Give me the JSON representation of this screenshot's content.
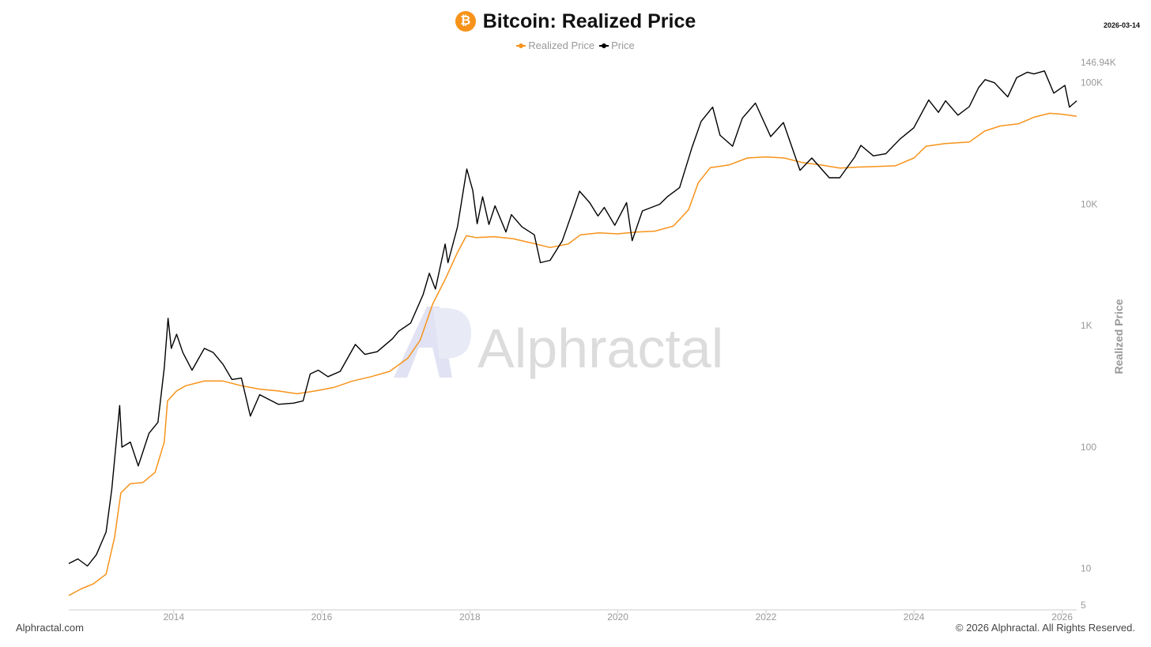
{
  "header": {
    "title": "Bitcoin: Realized Price",
    "icon": "bitcoin-icon",
    "icon_glyph": "₿",
    "date": "2026-03-14"
  },
  "legend": [
    {
      "label": "Realized Price",
      "color": "#f7931a"
    },
    {
      "label": "Price",
      "color": "#000000"
    }
  ],
  "watermark": "Alphractal",
  "footer": {
    "left": "Alphractal.com",
    "right": "© 2026 Alphractal. All Rights Reserved."
  },
  "chart_data": {
    "type": "line",
    "title": "Bitcoin: Realized Price",
    "ylabel": "Realized Price",
    "xlabel": "",
    "yscale": "log",
    "ylim": [
      5,
      146940
    ],
    "xlim": [
      "2012-08-01",
      "2026-03-14"
    ],
    "x_ticks": [
      "2014",
      "2016",
      "2018",
      "2020",
      "2022",
      "2024",
      "2026"
    ],
    "y_ticks": [
      {
        "value": 5,
        "label": "5"
      },
      {
        "value": 10,
        "label": "10"
      },
      {
        "value": 100,
        "label": "100"
      },
      {
        "value": 1000,
        "label": "1K"
      },
      {
        "value": 10000,
        "label": "10K"
      },
      {
        "value": 100000,
        "label": "100K"
      },
      {
        "value": 146940,
        "label": "146.94K"
      }
    ],
    "grid": false,
    "legend_position": "top-center",
    "series": [
      {
        "name": "Realized Price",
        "color": "#f7931a",
        "points": [
          [
            "2012-08-01",
            6
          ],
          [
            "2012-10-01",
            6.8
          ],
          [
            "2012-12-01",
            7.5
          ],
          [
            "2013-02-01",
            9
          ],
          [
            "2013-03-15",
            18
          ],
          [
            "2013-04-15",
            42
          ],
          [
            "2013-06-01",
            50
          ],
          [
            "2013-08-01",
            51
          ],
          [
            "2013-10-01",
            62
          ],
          [
            "2013-11-15",
            110
          ],
          [
            "2013-12-01",
            240
          ],
          [
            "2014-01-15",
            290
          ],
          [
            "2014-03-01",
            320
          ],
          [
            "2014-06-01",
            350
          ],
          [
            "2014-09-01",
            350
          ],
          [
            "2014-12-01",
            320
          ],
          [
            "2015-03-01",
            300
          ],
          [
            "2015-06-01",
            290
          ],
          [
            "2015-09-01",
            275
          ],
          [
            "2015-12-01",
            290
          ],
          [
            "2016-03-01",
            310
          ],
          [
            "2016-06-01",
            350
          ],
          [
            "2016-09-01",
            380
          ],
          [
            "2016-12-01",
            420
          ],
          [
            "2017-03-01",
            540
          ],
          [
            "2017-05-01",
            760
          ],
          [
            "2017-07-01",
            1500
          ],
          [
            "2017-09-01",
            2400
          ],
          [
            "2017-11-01",
            4000
          ],
          [
            "2017-12-15",
            5500
          ],
          [
            "2018-02-01",
            5300
          ],
          [
            "2018-05-01",
            5400
          ],
          [
            "2018-08-01",
            5200
          ],
          [
            "2018-11-01",
            4800
          ],
          [
            "2019-02-01",
            4400
          ],
          [
            "2019-05-01",
            4700
          ],
          [
            "2019-07-01",
            5600
          ],
          [
            "2019-10-01",
            5800
          ],
          [
            "2020-01-01",
            5700
          ],
          [
            "2020-04-01",
            5900
          ],
          [
            "2020-07-01",
            6000
          ],
          [
            "2020-10-01",
            6600
          ],
          [
            "2020-12-15",
            9000
          ],
          [
            "2021-02-01",
            15000
          ],
          [
            "2021-04-01",
            20000
          ],
          [
            "2021-07-01",
            21000
          ],
          [
            "2021-10-01",
            24000
          ],
          [
            "2022-01-01",
            24500
          ],
          [
            "2022-04-01",
            24000
          ],
          [
            "2022-07-01",
            22000
          ],
          [
            "2022-10-01",
            21000
          ],
          [
            "2023-01-01",
            19800
          ],
          [
            "2023-04-01",
            20200
          ],
          [
            "2023-07-01",
            20400
          ],
          [
            "2023-10-01",
            20700
          ],
          [
            "2024-01-01",
            24000
          ],
          [
            "2024-03-01",
            30000
          ],
          [
            "2024-06-01",
            31500
          ],
          [
            "2024-10-01",
            32500
          ],
          [
            "2024-12-15",
            40000
          ],
          [
            "2025-03-01",
            44000
          ],
          [
            "2025-06-01",
            46000
          ],
          [
            "2025-08-15",
            52000
          ],
          [
            "2025-11-01",
            56000
          ],
          [
            "2026-01-01",
            55000
          ],
          [
            "2026-03-14",
            53000
          ]
        ]
      },
      {
        "name": "Price",
        "color": "#000000",
        "points": [
          [
            "2012-08-01",
            11
          ],
          [
            "2012-09-15",
            12
          ],
          [
            "2012-11-01",
            10.5
          ],
          [
            "2012-12-15",
            13
          ],
          [
            "2013-02-01",
            20
          ],
          [
            "2013-03-01",
            45
          ],
          [
            "2013-04-09",
            220
          ],
          [
            "2013-04-20",
            100
          ],
          [
            "2013-06-01",
            110
          ],
          [
            "2013-07-10",
            70
          ],
          [
            "2013-09-01",
            130
          ],
          [
            "2013-10-15",
            160
          ],
          [
            "2013-11-15",
            450
          ],
          [
            "2013-12-04",
            1150
          ],
          [
            "2013-12-20",
            650
          ],
          [
            "2014-01-15",
            850
          ],
          [
            "2014-02-15",
            600
          ],
          [
            "2014-04-01",
            430
          ],
          [
            "2014-06-01",
            650
          ],
          [
            "2014-07-15",
            600
          ],
          [
            "2014-09-01",
            480
          ],
          [
            "2014-10-15",
            360
          ],
          [
            "2014-12-01",
            370
          ],
          [
            "2015-01-14",
            180
          ],
          [
            "2015-03-01",
            270
          ],
          [
            "2015-06-01",
            225
          ],
          [
            "2015-08-15",
            230
          ],
          [
            "2015-10-01",
            240
          ],
          [
            "2015-11-05",
            400
          ],
          [
            "2015-12-15",
            430
          ],
          [
            "2016-02-01",
            380
          ],
          [
            "2016-04-01",
            420
          ],
          [
            "2016-06-15",
            700
          ],
          [
            "2016-08-01",
            580
          ],
          [
            "2016-10-01",
            610
          ],
          [
            "2016-12-15",
            780
          ],
          [
            "2017-01-15",
            900
          ],
          [
            "2017-03-15",
            1050
          ],
          [
            "2017-05-15",
            1800
          ],
          [
            "2017-06-15",
            2700
          ],
          [
            "2017-07-15",
            2000
          ],
          [
            "2017-09-01",
            4700
          ],
          [
            "2017-09-15",
            3300
          ],
          [
            "2017-11-01",
            6500
          ],
          [
            "2017-12-17",
            19500
          ],
          [
            "2018-01-15",
            13000
          ],
          [
            "2018-02-06",
            6900
          ],
          [
            "2018-03-05",
            11500
          ],
          [
            "2018-04-05",
            6800
          ],
          [
            "2018-05-05",
            9700
          ],
          [
            "2018-06-28",
            5900
          ],
          [
            "2018-07-25",
            8200
          ],
          [
            "2018-09-15",
            6500
          ],
          [
            "2018-11-15",
            5600
          ],
          [
            "2018-12-15",
            3300
          ],
          [
            "2019-02-01",
            3450
          ],
          [
            "2019-04-02",
            5000
          ],
          [
            "2019-05-15",
            8000
          ],
          [
            "2019-06-26",
            12800
          ],
          [
            "2019-08-15",
            10300
          ],
          [
            "2019-09-25",
            8000
          ],
          [
            "2019-10-26",
            9400
          ],
          [
            "2019-12-17",
            6700
          ],
          [
            "2020-02-13",
            10300
          ],
          [
            "2020-03-12",
            5000
          ],
          [
            "2020-05-01",
            8800
          ],
          [
            "2020-07-26",
            10000
          ],
          [
            "2020-09-01",
            11500
          ],
          [
            "2020-11-01",
            13700
          ],
          [
            "2020-12-31",
            29000
          ],
          [
            "2021-02-15",
            48000
          ],
          [
            "2021-04-13",
            63000
          ],
          [
            "2021-05-19",
            37000
          ],
          [
            "2021-07-20",
            30000
          ],
          [
            "2021-09-06",
            51000
          ],
          [
            "2021-11-10",
            68000
          ],
          [
            "2022-01-24",
            36000
          ],
          [
            "2022-03-28",
            47000
          ],
          [
            "2022-06-18",
            19000
          ],
          [
            "2022-08-15",
            24000
          ],
          [
            "2022-11-09",
            16500
          ],
          [
            "2022-12-31",
            16500
          ],
          [
            "2023-03-15",
            24500
          ],
          [
            "2023-04-14",
            30500
          ],
          [
            "2023-06-15",
            25000
          ],
          [
            "2023-08-15",
            26000
          ],
          [
            "2023-10-25",
            34500
          ],
          [
            "2023-12-31",
            42500
          ],
          [
            "2024-03-14",
            72000
          ],
          [
            "2024-05-01",
            57000
          ],
          [
            "2024-06-05",
            71000
          ],
          [
            "2024-08-05",
            54000
          ],
          [
            "2024-09-30",
            63500
          ],
          [
            "2024-11-15",
            91000
          ],
          [
            "2024-12-17",
            106000
          ],
          [
            "2025-02-01",
            100000
          ],
          [
            "2025-04-08",
            76500
          ],
          [
            "2025-05-22",
            110000
          ],
          [
            "2025-07-14",
            122000
          ],
          [
            "2025-08-15",
            118000
          ],
          [
            "2025-10-06",
            125000
          ],
          [
            "2025-11-21",
            82000
          ],
          [
            "2026-01-15",
            95000
          ],
          [
            "2026-02-06",
            63000
          ],
          [
            "2026-03-14",
            71000
          ]
        ]
      }
    ]
  }
}
